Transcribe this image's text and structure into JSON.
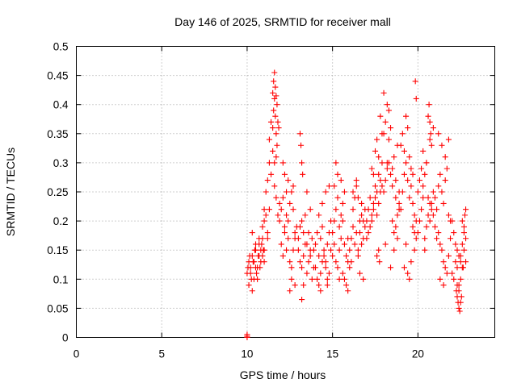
{
  "chart_data": {
    "type": "scatter",
    "title": "Day 146 of 2025, SRMTID for receiver mall",
    "xlabel": "GPS time / hours",
    "ylabel": "SRMTID / TECUs",
    "xlim": [
      0,
      24.5
    ],
    "ylim": [
      0,
      0.5
    ],
    "xticks": [
      0,
      5,
      10,
      15,
      20
    ],
    "xtick_labels": [
      "0",
      "5",
      "10",
      "15",
      "20"
    ],
    "yticks": [
      0,
      0.05,
      0.1,
      0.15,
      0.2,
      0.25,
      0.3,
      0.35,
      0.4,
      0.45,
      0.5
    ],
    "ytick_labels": [
      "0",
      "0.05",
      "0.1",
      "0.15",
      "0.2",
      "0.25",
      "0.3",
      "0.35",
      "0.4",
      "0.45",
      "0.5"
    ],
    "grid": true,
    "marker": "+",
    "color": "#ff0000",
    "series": [
      {
        "name": "SRMTID",
        "x": [
          10.0,
          10.0,
          10.0,
          10.0,
          10.1,
          10.2,
          10.3,
          10.4,
          10.5,
          10.6,
          10.7,
          10.8,
          10.9,
          10.1,
          10.2,
          10.3,
          10.4,
          10.5,
          10.6,
          10.7,
          10.8,
          10.9,
          11.0,
          10.05,
          10.15,
          10.25,
          10.35,
          10.45,
          10.55,
          10.65,
          10.75,
          10.85,
          10.95,
          10.3,
          10.5,
          10.7,
          10.9,
          11.0,
          11.1,
          11.2,
          11.3,
          11.0,
          11.2,
          11.0,
          11.1,
          11.2,
          11.3,
          11.4,
          11.5,
          11.6,
          11.7,
          11.8,
          11.9,
          11.3,
          11.4,
          11.5,
          11.55,
          11.6,
          11.65,
          11.7,
          11.75,
          11.6,
          11.7,
          11.5,
          11.55,
          11.6,
          11.65,
          11.7,
          11.75,
          11.8,
          11.85,
          11.9,
          12.0,
          12.1,
          12.2,
          12.3,
          12.4,
          12.5,
          12.6,
          12.7,
          12.8,
          12.0,
          12.1,
          12.2,
          12.3,
          12.4,
          12.5,
          12.6,
          12.7,
          12.8,
          12.9,
          12.2,
          12.4,
          12.6,
          12.8,
          12.5,
          12.7,
          12.1,
          12.3,
          13.0,
          13.1,
          13.2,
          13.3,
          13.4,
          13.5,
          13.6,
          13.7,
          13.8,
          13.9,
          13.0,
          13.1,
          13.2,
          13.3,
          13.4,
          13.5,
          13.6,
          13.7,
          13.8,
          13.9,
          13.1,
          13.15,
          13.2,
          13.25,
          13.2,
          13.3,
          13.5,
          13.7,
          14.0,
          14.1,
          14.2,
          14.3,
          14.4,
          14.5,
          14.6,
          14.7,
          14.8,
          14.9,
          14.0,
          14.1,
          14.2,
          14.3,
          14.4,
          14.5,
          14.6,
          14.7,
          14.8,
          14.9,
          14.2,
          14.4,
          14.6,
          14.8,
          14.3,
          14.7,
          15.0,
          15.1,
          15.2,
          15.3,
          15.4,
          15.5,
          15.6,
          15.7,
          15.8,
          15.9,
          15.0,
          15.1,
          15.2,
          15.3,
          15.4,
          15.5,
          15.6,
          15.7,
          15.8,
          15.9,
          15.2,
          15.3,
          15.5,
          15.7,
          15.9,
          15.4,
          15.6,
          15.1,
          16.0,
          16.1,
          16.2,
          16.3,
          16.4,
          16.5,
          16.6,
          16.7,
          16.8,
          16.9,
          16.0,
          16.1,
          16.2,
          16.3,
          16.4,
          16.5,
          16.6,
          16.7,
          16.8,
          16.9,
          16.2,
          16.4,
          16.6,
          16.8,
          16.5,
          16.7,
          17.0,
          17.1,
          17.2,
          17.3,
          17.4,
          17.5,
          17.6,
          17.7,
          17.8,
          17.9,
          17.0,
          17.1,
          17.2,
          17.3,
          17.4,
          17.5,
          17.6,
          17.7,
          17.8,
          17.9,
          17.3,
          17.5,
          17.7,
          17.9,
          17.4,
          17.6,
          17.8,
          17.6,
          17.7,
          17.75,
          18.0,
          18.1,
          18.2,
          18.3,
          18.4,
          18.5,
          18.6,
          18.7,
          18.8,
          18.9,
          18.0,
          18.1,
          18.2,
          18.3,
          18.4,
          18.5,
          18.6,
          18.7,
          18.8,
          18.9,
          18.0,
          18.2,
          18.4,
          18.6,
          18.8,
          18.3,
          18.5,
          18.7,
          18.9,
          18.1,
          19.0,
          19.1,
          19.2,
          19.3,
          19.4,
          19.5,
          19.6,
          19.7,
          19.8,
          19.9,
          19.0,
          19.1,
          19.2,
          19.3,
          19.4,
          19.5,
          19.6,
          19.7,
          19.8,
          19.9,
          19.2,
          19.4,
          19.6,
          19.8,
          19.5,
          19.7,
          19.85,
          19.9,
          19.3,
          20.0,
          20.1,
          20.2,
          20.3,
          20.4,
          20.5,
          20.6,
          20.7,
          20.8,
          20.9,
          20.0,
          20.1,
          20.2,
          20.3,
          20.4,
          20.5,
          20.6,
          20.7,
          20.8,
          20.9,
          20.3,
          20.5,
          20.7,
          20.9,
          20.6,
          20.65,
          20.7,
          20.75,
          20.8,
          20.4,
          21.0,
          21.1,
          21.2,
          21.3,
          21.4,
          21.5,
          21.6,
          21.7,
          21.8,
          21.9,
          21.0,
          21.1,
          21.2,
          21.3,
          21.4,
          21.5,
          21.6,
          21.7,
          21.8,
          21.9,
          21.2,
          21.4,
          21.6,
          21.8,
          21.3,
          21.5,
          22.0,
          22.1,
          22.2,
          22.3,
          22.4,
          22.5,
          22.6,
          22.7,
          22.8,
          22.0,
          22.1,
          22.2,
          22.3,
          22.4,
          22.5,
          22.6,
          22.7,
          22.8,
          22.25,
          22.3,
          22.35,
          22.4,
          22.45,
          22.5,
          22.55,
          22.3,
          22.4,
          22.5,
          22.6,
          22.7,
          22.8,
          22.75,
          22.65
        ],
        "y": [
          0.0,
          0.005,
          0.002,
          0.11,
          0.13,
          0.12,
          0.14,
          0.1,
          0.15,
          0.12,
          0.16,
          0.13,
          0.14,
          0.09,
          0.11,
          0.08,
          0.13,
          0.12,
          0.1,
          0.14,
          0.15,
          0.17,
          0.13,
          0.12,
          0.14,
          0.1,
          0.13,
          0.15,
          0.11,
          0.14,
          0.12,
          0.16,
          0.15,
          0.18,
          0.16,
          0.17,
          0.19,
          0.2,
          0.21,
          0.18,
          0.22,
          0.15,
          0.17,
          0.22,
          0.25,
          0.27,
          0.3,
          0.28,
          0.32,
          0.26,
          0.24,
          0.21,
          0.23,
          0.34,
          0.37,
          0.36,
          0.39,
          0.41,
          0.38,
          0.35,
          0.33,
          0.3,
          0.31,
          0.42,
          0.44,
          0.455,
          0.43,
          0.415,
          0.4,
          0.37,
          0.36,
          0.2,
          0.22,
          0.24,
          0.19,
          0.21,
          0.17,
          0.23,
          0.25,
          0.26,
          0.18,
          0.16,
          0.14,
          0.18,
          0.15,
          0.2,
          0.13,
          0.12,
          0.15,
          0.17,
          0.19,
          0.28,
          0.27,
          0.1,
          0.09,
          0.08,
          0.22,
          0.3,
          0.25,
          0.15,
          0.13,
          0.12,
          0.14,
          0.16,
          0.11,
          0.13,
          0.15,
          0.1,
          0.12,
          0.17,
          0.19,
          0.2,
          0.18,
          0.21,
          0.16,
          0.18,
          0.14,
          0.17,
          0.15,
          0.35,
          0.33,
          0.3,
          0.28,
          0.065,
          0.09,
          0.25,
          0.22,
          0.12,
          0.1,
          0.09,
          0.11,
          0.13,
          0.14,
          0.12,
          0.1,
          0.11,
          0.15,
          0.16,
          0.18,
          0.14,
          0.17,
          0.19,
          0.15,
          0.13,
          0.16,
          0.18,
          0.2,
          0.21,
          0.23,
          0.25,
          0.26,
          0.08,
          0.09,
          0.14,
          0.16,
          0.13,
          0.12,
          0.15,
          0.17,
          0.11,
          0.1,
          0.09,
          0.13,
          0.18,
          0.2,
          0.22,
          0.24,
          0.19,
          0.21,
          0.23,
          0.16,
          0.14,
          0.17,
          0.3,
          0.28,
          0.27,
          0.25,
          0.08,
          0.1,
          0.2,
          0.26,
          0.15,
          0.17,
          0.19,
          0.16,
          0.18,
          0.14,
          0.2,
          0.21,
          0.17,
          0.19,
          0.12,
          0.13,
          0.22,
          0.24,
          0.26,
          0.15,
          0.18,
          0.23,
          0.2,
          0.22,
          0.25,
          0.27,
          0.11,
          0.1,
          0.24,
          0.16,
          0.2,
          0.22,
          0.24,
          0.21,
          0.23,
          0.26,
          0.25,
          0.28,
          0.27,
          0.3,
          0.17,
          0.18,
          0.19,
          0.2,
          0.22,
          0.24,
          0.21,
          0.23,
          0.25,
          0.26,
          0.29,
          0.32,
          0.31,
          0.35,
          0.28,
          0.34,
          0.38,
          0.14,
          0.15,
          0.13,
          0.25,
          0.27,
          0.29,
          0.3,
          0.28,
          0.26,
          0.31,
          0.24,
          0.33,
          0.22,
          0.35,
          0.37,
          0.4,
          0.39,
          0.36,
          0.2,
          0.18,
          0.19,
          0.21,
          0.23,
          0.42,
          0.3,
          0.12,
          0.15,
          0.17,
          0.34,
          0.29,
          0.27,
          0.25,
          0.16,
          0.22,
          0.25,
          0.28,
          0.3,
          0.27,
          0.24,
          0.26,
          0.23,
          0.21,
          0.2,
          0.33,
          0.35,
          0.32,
          0.38,
          0.36,
          0.31,
          0.29,
          0.19,
          0.18,
          0.17,
          0.12,
          0.11,
          0.13,
          0.15,
          0.1,
          0.28,
          0.44,
          0.41,
          0.16,
          0.25,
          0.27,
          0.29,
          0.26,
          0.28,
          0.3,
          0.24,
          0.23,
          0.22,
          0.21,
          0.18,
          0.2,
          0.22,
          0.24,
          0.17,
          0.19,
          0.21,
          0.2,
          0.23,
          0.25,
          0.32,
          0.3,
          0.34,
          0.36,
          0.38,
          0.4,
          0.37,
          0.35,
          0.33,
          0.15,
          0.24,
          0.22,
          0.26,
          0.28,
          0.25,
          0.23,
          0.27,
          0.29,
          0.21,
          0.2,
          0.19,
          0.17,
          0.18,
          0.16,
          0.15,
          0.13,
          0.12,
          0.11,
          0.14,
          0.17,
          0.35,
          0.33,
          0.31,
          0.34,
          0.1,
          0.09,
          0.2,
          0.18,
          0.16,
          0.15,
          0.14,
          0.13,
          0.12,
          0.15,
          0.17,
          0.11,
          0.1,
          0.13,
          0.12,
          0.09,
          0.14,
          0.16,
          0.18,
          0.13,
          0.08,
          0.07,
          0.06,
          0.05,
          0.045,
          0.06,
          0.07,
          0.09,
          0.08,
          0.1,
          0.2,
          0.19,
          0.22,
          0.21,
          0.12
        ]
      }
    ]
  }
}
